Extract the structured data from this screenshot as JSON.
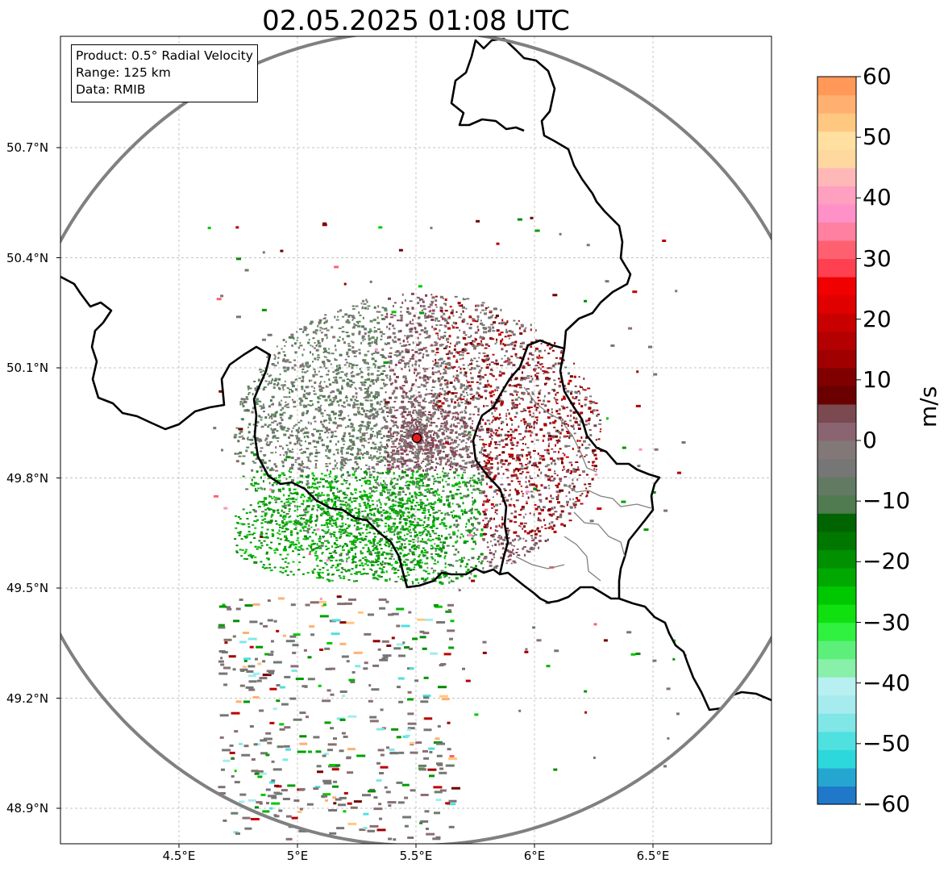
{
  "title": "02.05.2025 01:08 UTC",
  "info_box": {
    "product": "Product: 0.5° Radial Velocity",
    "range": "Range: 125 km",
    "data": "Data: RMIB"
  },
  "colorbar": {
    "unit": "m/s",
    "min": -60,
    "max": 60,
    "tick_labels": [
      "60",
      "50",
      "40",
      "30",
      "20",
      "10",
      "0",
      "−10",
      "−20",
      "−30",
      "−40",
      "−50",
      "−60"
    ],
    "tick_values": [
      60,
      50,
      40,
      30,
      20,
      10,
      0,
      -10,
      -20,
      -30,
      -40,
      -50,
      -60
    ],
    "colors": [
      "#1f78c8",
      "#25a6d0",
      "#2dd8dc",
      "#4fe0e0",
      "#80e6e6",
      "#a6ecee",
      "#b8f0f2",
      "#88f0a8",
      "#5cf07a",
      "#30f040",
      "#10e010",
      "#00c800",
      "#00a800",
      "#009000",
      "#007800",
      "#006400",
      "#507a50",
      "#627a62",
      "#767676",
      "#827878",
      "#8a6470",
      "#7a4a50",
      "#6a0000",
      "#800000",
      "#a00000",
      "#b40000",
      "#c80000",
      "#e00000",
      "#f00000",
      "#ff4050",
      "#ff6070",
      "#ff80a0",
      "#ff90c8",
      "#ffa0c0",
      "#ffb8b8",
      "#ffd8a0",
      "#ffe0a0",
      "#ffc880",
      "#ffb070",
      "#ff9858"
    ]
  },
  "chart_data": {
    "type": "heatmap",
    "title": "02.05.2025 01:08 UTC",
    "xlabel": "",
    "ylabel": "",
    "x_ticks": [
      4.5,
      5.0,
      5.5,
      6.0,
      6.5
    ],
    "x_tick_labels": [
      "4.5°E",
      "5°E",
      "5.5°E",
      "6°E",
      "6.5°E"
    ],
    "y_ticks": [
      48.9,
      49.2,
      49.5,
      49.8,
      50.1,
      50.4,
      50.7
    ],
    "y_tick_labels": [
      "48.9°N",
      "49.2°N",
      "49.5°N",
      "49.8°N",
      "50.1°N",
      "50.4°N",
      "50.7°N"
    ],
    "xlim": [
      4.0,
      7.0
    ],
    "ylim": [
      48.8,
      51.0
    ],
    "grid": true,
    "radar_site": {
      "lon": 5.505,
      "lat": 49.914
    },
    "range_km": 125,
    "value_range": [
      -60,
      60
    ],
    "unit": "m/s"
  }
}
